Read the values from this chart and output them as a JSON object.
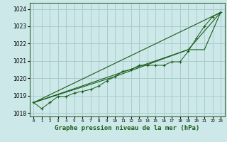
{
  "bg_color": "#cce8e8",
  "grid_color": "#aacccc",
  "line_color": "#1a5c1a",
  "xlabel": "Graphe pression niveau de la mer (hPa)",
  "xlim": [
    -0.5,
    23.5
  ],
  "ylim": [
    1017.8,
    1024.35
  ],
  "yticks": [
    1018,
    1019,
    1020,
    1021,
    1022,
    1023,
    1024
  ],
  "xticks": [
    0,
    1,
    2,
    3,
    4,
    5,
    6,
    7,
    8,
    9,
    10,
    11,
    12,
    13,
    14,
    15,
    16,
    17,
    18,
    19,
    20,
    21,
    22,
    23
  ],
  "series": [
    {
      "x": [
        0,
        1,
        2,
        3,
        4,
        5,
        6,
        7,
        8,
        9,
        10,
        11,
        12,
        13,
        14,
        15,
        16,
        17,
        18,
        19,
        20,
        21,
        22,
        23
      ],
      "y": [
        1018.6,
        1018.25,
        1018.6,
        1018.95,
        1018.95,
        1019.15,
        1019.25,
        1019.35,
        1019.55,
        1019.85,
        1020.1,
        1020.4,
        1020.5,
        1020.75,
        1020.75,
        1020.75,
        1020.75,
        1020.95,
        1020.95,
        1021.55,
        1022.3,
        1023.0,
        1023.55,
        1023.8
      ],
      "style": "marker"
    },
    {
      "x": [
        0,
        23
      ],
      "y": [
        1018.6,
        1023.8
      ],
      "style": "straight"
    },
    {
      "x": [
        0,
        19,
        23
      ],
      "y": [
        1018.6,
        1021.65,
        1023.8
      ],
      "style": "straight"
    },
    {
      "x": [
        0,
        10,
        19,
        21,
        23
      ],
      "y": [
        1018.6,
        1020.1,
        1021.65,
        1021.65,
        1023.8
      ],
      "style": "straight"
    }
  ]
}
